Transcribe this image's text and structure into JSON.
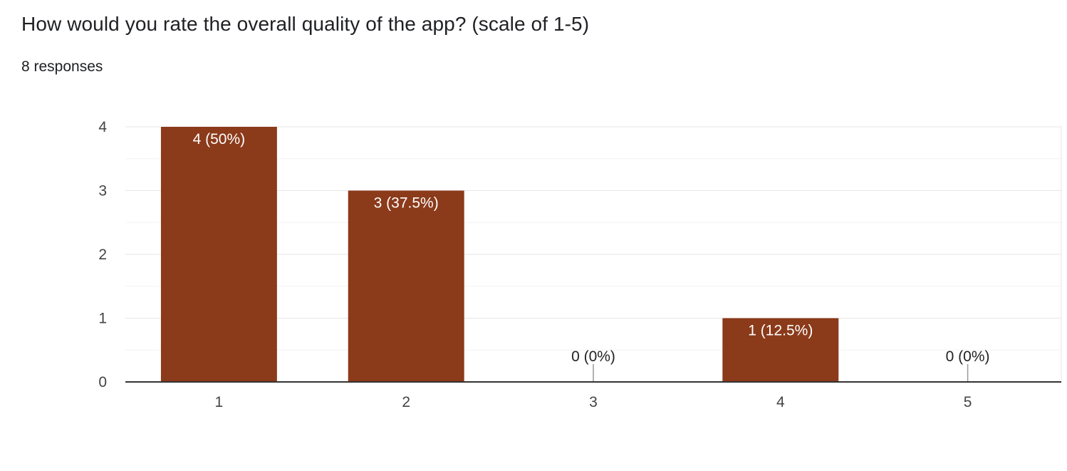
{
  "header": {
    "title": "How would you rate the overall quality of the app? (scale of 1-5)",
    "response_count": "8 responses"
  },
  "colors": {
    "bar": "#8b3a1a",
    "axis": "#333333",
    "major_grid": "#e6e6e6",
    "minor_grid": "#f3f3f3",
    "zero_stem": "#999999"
  },
  "chart_data": {
    "type": "bar",
    "categories": [
      "1",
      "2",
      "3",
      "4",
      "5"
    ],
    "values": [
      4,
      3,
      0,
      1,
      0
    ],
    "data_labels": [
      "4 (50%)",
      "3 (37.5%)",
      "0 (0%)",
      "1 (12.5%)",
      "0 (0%)"
    ],
    "ylim": [
      0,
      4
    ],
    "yticks": [
      0,
      1,
      2,
      3,
      4
    ],
    "grid": true,
    "legend": "none",
    "title": "How would you rate the overall quality of the app? (scale of 1-5)",
    "xlabel": "",
    "ylabel": ""
  }
}
